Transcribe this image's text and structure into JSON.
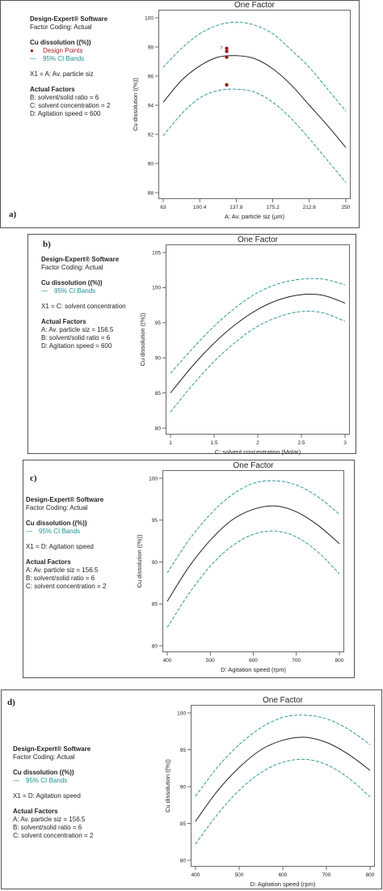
{
  "software_title": "Design-Expert® Software",
  "panels": [
    {
      "label": "a)",
      "factor_coding": "Factor Coding: Actual",
      "response": "Cu dissolution  ((%))",
      "legend": [
        "Design Points",
        "95% CI Bands"
      ],
      "x1": "X1 = A: Av. particle siz",
      "actual_factors_title": "Actual Factors",
      "actual_factors": [
        "B: solvent/solid ratio = 6",
        "C: solvent concentration  = 2",
        "D: Agitation speed = 600"
      ]
    },
    {
      "label": "b)",
      "factor_coding": "Factor Coding: Actual",
      "response": "Cu dissolution  ((%))",
      "legend": [
        "95% CI Bands"
      ],
      "x1": "X1 = C: solvent concentration",
      "actual_factors_title": "Actual Factors",
      "actual_factors": [
        "A: Av. particle siz = 156.5",
        "B: solvent/solid ratio = 6",
        "D: Agitation speed = 600"
      ]
    },
    {
      "label": "c)",
      "factor_coding": "Factor Coding: Actual",
      "response": "Cu dissolution  ((%))",
      "legend": [
        "95% CI Bands"
      ],
      "x1": "X1 = D: Agitation speed",
      "actual_factors_title": "Actual Factors",
      "actual_factors": [
        "A: Av. particle siz = 156.5",
        "B: solvent/solid ratio = 6",
        "C: solvent concentration  = 2"
      ]
    },
    {
      "label": "d)",
      "factor_coding": "Factor Coding: Actual",
      "response": "Cu dissolution  ((%))",
      "legend": [
        "95% CI Bands"
      ],
      "x1": "X1 = D: Agitation speed",
      "actual_factors_title": "Actual Factors",
      "actual_factors": [
        "A: Av. particle siz = 156.5",
        "B: solvent/solid ratio = 6",
        "C: solvent concentration  = 2"
      ]
    }
  ],
  "colors": {
    "fit_line": "#222222",
    "ci_bands": "#1f8f8f",
    "design_points": "#9b1c1c"
  },
  "chart_data": [
    {
      "type": "line",
      "title": "One Factor",
      "xlabel": "A: Av. particle siz (µm)",
      "ylabel": "Cu dissolution  ((%))",
      "xlim": [
        63,
        250
      ],
      "ylim": [
        88,
        100
      ],
      "xticks": [
        63,
        100.4,
        137.8,
        175.2,
        212.6,
        250
      ],
      "xtick_labels": [
        "63",
        "100.4",
        "137.8",
        "175.2",
        "212.6",
        "250"
      ],
      "yticks": [
        88,
        90,
        92,
        94,
        96,
        98,
        100
      ],
      "x": [
        63,
        81.7,
        100.4,
        119.1,
        137.8,
        156.5,
        175.2,
        193.9,
        212.6,
        231.3,
        250
      ],
      "series": [
        {
          "role": "fit",
          "values": [
            94.2,
            95.7,
            96.7,
            97.3,
            97.4,
            97.2,
            96.5,
            95.4,
            94.0,
            92.6,
            91.1
          ]
        },
        {
          "role": "ci_upper",
          "values": [
            96.6,
            97.9,
            98.9,
            99.5,
            99.7,
            99.5,
            98.9,
            97.8,
            96.6,
            95.1,
            93.6
          ]
        },
        {
          "role": "ci_lower",
          "values": [
            91.9,
            93.4,
            94.5,
            95.0,
            95.1,
            94.9,
            94.2,
            93.1,
            91.7,
            90.2,
            88.7
          ]
        }
      ],
      "design_points": [
        {
          "x": 128,
          "y": 97.9,
          "label": "7"
        },
        {
          "x": 128,
          "y": 97.7
        },
        {
          "x": 128,
          "y": 97.3
        },
        {
          "x": 128,
          "y": 95.4
        }
      ]
    },
    {
      "type": "line",
      "title": "One Factor",
      "xlabel": "C: solvent concentration  (Molar)",
      "ylabel": "Cu dissolution  ((%))",
      "xlim": [
        1,
        3
      ],
      "ylim": [
        80,
        105
      ],
      "xticks": [
        1,
        1.5,
        2,
        2.5,
        3
      ],
      "xtick_labels": [
        "1",
        "1.5",
        "2",
        "2.5",
        "3"
      ],
      "yticks": [
        80,
        85,
        90,
        95,
        100,
        105
      ],
      "x": [
        1,
        1.25,
        1.5,
        1.75,
        2,
        2.25,
        2.5,
        2.75,
        3
      ],
      "series": [
        {
          "role": "fit",
          "values": [
            85.0,
            88.8,
            92.1,
            94.8,
            96.9,
            98.3,
            99.0,
            98.9,
            97.8
          ]
        },
        {
          "role": "ci_upper",
          "values": [
            87.8,
            91.3,
            94.5,
            97.2,
            99.3,
            100.6,
            101.2,
            101.2,
            100.4
          ]
        },
        {
          "role": "ci_lower",
          "values": [
            82.3,
            86.1,
            89.5,
            92.3,
            94.5,
            95.9,
            96.6,
            96.4,
            95.2
          ]
        }
      ]
    },
    {
      "type": "line",
      "title": "One Factor",
      "xlabel": "D: Agitation speed (rpm)",
      "ylabel": "Cu dissolution  ((%))",
      "xlim": [
        400,
        800
      ],
      "ylim": [
        80,
        100
      ],
      "xticks": [
        400,
        500,
        600,
        700,
        800
      ],
      "xtick_labels": [
        "400",
        "500",
        "600",
        "700",
        "800"
      ],
      "yticks": [
        80,
        85,
        90,
        95,
        100
      ],
      "x": [
        400,
        450,
        500,
        550,
        600,
        650,
        700,
        750,
        800
      ],
      "series": [
        {
          "role": "fit",
          "values": [
            85.3,
            89.4,
            92.6,
            95.0,
            96.3,
            96.7,
            96.0,
            94.4,
            92.2
          ]
        },
        {
          "role": "ci_upper",
          "values": [
            88.7,
            92.6,
            95.7,
            98.0,
            99.4,
            99.7,
            99.2,
            97.8,
            95.7
          ]
        },
        {
          "role": "ci_lower",
          "values": [
            82.2,
            86.2,
            89.5,
            91.9,
            93.3,
            93.7,
            93.0,
            91.2,
            88.6
          ]
        }
      ]
    },
    {
      "type": "line",
      "title": "One Factor",
      "xlabel": "D: Agitation speed (rpm)",
      "ylabel": "Cu dissolution  ((%))",
      "xlim": [
        400,
        800
      ],
      "ylim": [
        80,
        100
      ],
      "xticks": [
        400,
        500,
        600,
        700,
        800
      ],
      "xtick_labels": [
        "400",
        "500",
        "600",
        "700",
        "800"
      ],
      "yticks": [
        80,
        85,
        90,
        95,
        100
      ],
      "x": [
        400,
        450,
        500,
        550,
        600,
        650,
        700,
        750,
        800
      ],
      "series": [
        {
          "role": "fit",
          "values": [
            85.3,
            89.4,
            92.6,
            95.0,
            96.3,
            96.7,
            96.0,
            94.4,
            92.2
          ]
        },
        {
          "role": "ci_upper",
          "values": [
            88.7,
            92.6,
            95.7,
            98.0,
            99.4,
            99.7,
            99.2,
            97.8,
            95.7
          ]
        },
        {
          "role": "ci_lower",
          "values": [
            82.2,
            86.2,
            89.5,
            91.9,
            93.3,
            93.7,
            93.0,
            91.2,
            88.6
          ]
        }
      ]
    }
  ]
}
